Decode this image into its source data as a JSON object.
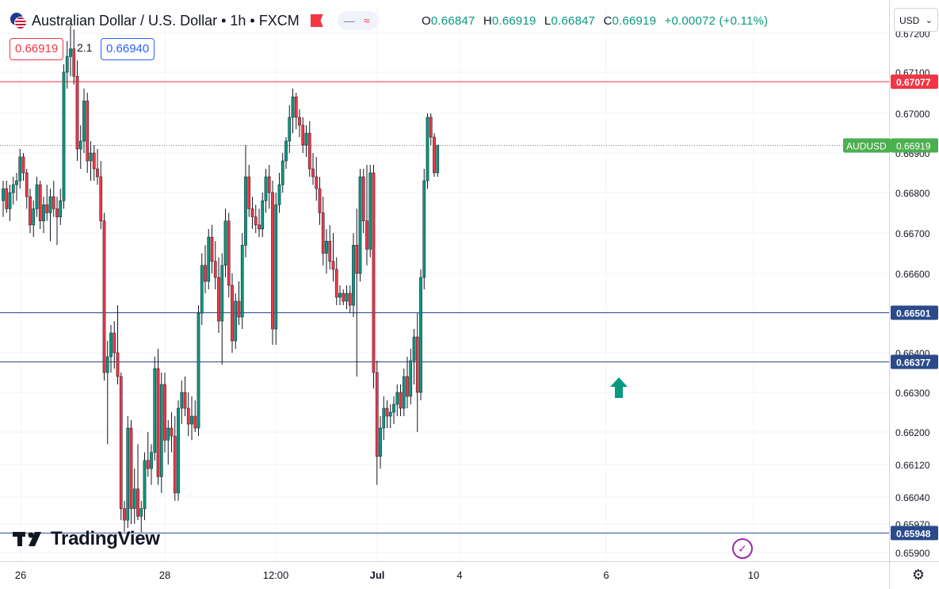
{
  "header": {
    "title": "Australian Dollar / U.S. Dollar • 1h • FXCM",
    "ohlc": {
      "o_label": "O",
      "o": "0.66847",
      "h_label": "H",
      "h": "0.66919",
      "l_label": "L",
      "l": "0.66847",
      "c_label": "C",
      "c": "0.66919",
      "change": "+0.00072 (+0.11%)"
    },
    "bid": "0.66919",
    "spread": "2.1",
    "ask": "0.66940",
    "currency": "USD",
    "icons": [
      "flag-icon",
      "minus-icon",
      "wave-icon"
    ]
  },
  "watermark": "TradingView",
  "colors": {
    "up": "#089981",
    "down": "#f23645",
    "resistance": "#f23645",
    "support": "#2a4a8a",
    "current": "#4caf50",
    "arrow": "#089981"
  },
  "chart_data": {
    "type": "candlestick",
    "symbol": "AUDUSD",
    "interval": "1h",
    "y_ticks": [
      "0.67200",
      "0.67100",
      "0.67000",
      "0.66900",
      "0.66800",
      "0.66700",
      "0.66600",
      "0.66500",
      "0.66400",
      "0.66300",
      "0.66200",
      "0.66120",
      "0.66040",
      "0.65970",
      "0.65900"
    ],
    "x_ticks": [
      "26",
      "28",
      "12:00",
      "Jul",
      "4",
      "6",
      "10"
    ],
    "levels": [
      {
        "value": 0.67077,
        "label": "0.67077",
        "kind": "resistance"
      },
      {
        "value": 0.66501,
        "label": "0.66501",
        "kind": "support"
      },
      {
        "value": 0.66377,
        "label": "0.66377",
        "kind": "support"
      },
      {
        "value": 0.65948,
        "label": "0.65948",
        "kind": "support"
      }
    ],
    "current": {
      "label": "AUDUSD",
      "value": 0.66919,
      "value_label": "0.66919"
    },
    "annotations": [
      {
        "type": "arrow-up",
        "near": "6",
        "price": 0.6631
      }
    ],
    "grid": true,
    "candles": [
      {
        "o": 0.6678,
        "h": 0.6683,
        "l": 0.6674,
        "c": 0.6681
      },
      {
        "o": 0.6681,
        "h": 0.6683,
        "l": 0.6675,
        "c": 0.6676
      },
      {
        "o": 0.6676,
        "h": 0.6682,
        "l": 0.6673,
        "c": 0.668
      },
      {
        "o": 0.668,
        "h": 0.6684,
        "l": 0.6677,
        "c": 0.6682
      },
      {
        "o": 0.6682,
        "h": 0.6685,
        "l": 0.6678,
        "c": 0.6683
      },
      {
        "o": 0.6683,
        "h": 0.6691,
        "l": 0.6681,
        "c": 0.6689
      },
      {
        "o": 0.6689,
        "h": 0.669,
        "l": 0.6683,
        "c": 0.6685
      },
      {
        "o": 0.6685,
        "h": 0.6686,
        "l": 0.6676,
        "c": 0.6679
      },
      {
        "o": 0.6679,
        "h": 0.6681,
        "l": 0.667,
        "c": 0.6672
      },
      {
        "o": 0.6672,
        "h": 0.6678,
        "l": 0.6669,
        "c": 0.6676
      },
      {
        "o": 0.6676,
        "h": 0.6684,
        "l": 0.6674,
        "c": 0.6682
      },
      {
        "o": 0.6682,
        "h": 0.6683,
        "l": 0.6671,
        "c": 0.6673
      },
      {
        "o": 0.6673,
        "h": 0.6679,
        "l": 0.667,
        "c": 0.6677
      },
      {
        "o": 0.6677,
        "h": 0.6682,
        "l": 0.6673,
        "c": 0.6675
      },
      {
        "o": 0.6675,
        "h": 0.6681,
        "l": 0.6668,
        "c": 0.6679
      },
      {
        "o": 0.6679,
        "h": 0.6683,
        "l": 0.6674,
        "c": 0.6676
      },
      {
        "o": 0.6676,
        "h": 0.6679,
        "l": 0.6667,
        "c": 0.6674
      },
      {
        "o": 0.6674,
        "h": 0.6681,
        "l": 0.6672,
        "c": 0.6678
      },
      {
        "o": 0.6678,
        "h": 0.6712,
        "l": 0.6676,
        "c": 0.671
      },
      {
        "o": 0.671,
        "h": 0.6718,
        "l": 0.6706,
        "c": 0.6714
      },
      {
        "o": 0.6714,
        "h": 0.6722,
        "l": 0.6709,
        "c": 0.6716
      },
      {
        "o": 0.6716,
        "h": 0.6721,
        "l": 0.6707,
        "c": 0.6709
      },
      {
        "o": 0.6709,
        "h": 0.6713,
        "l": 0.6688,
        "c": 0.6691
      },
      {
        "o": 0.6691,
        "h": 0.6697,
        "l": 0.6686,
        "c": 0.6693
      },
      {
        "o": 0.6693,
        "h": 0.6706,
        "l": 0.669,
        "c": 0.6703
      },
      {
        "o": 0.6703,
        "h": 0.6705,
        "l": 0.6685,
        "c": 0.6688
      },
      {
        "o": 0.6688,
        "h": 0.6693,
        "l": 0.6683,
        "c": 0.669
      },
      {
        "o": 0.669,
        "h": 0.6692,
        "l": 0.6683,
        "c": 0.6686
      },
      {
        "o": 0.6686,
        "h": 0.6691,
        "l": 0.6682,
        "c": 0.6684
      },
      {
        "o": 0.6684,
        "h": 0.6688,
        "l": 0.6671,
        "c": 0.6673
      },
      {
        "o": 0.6673,
        "h": 0.6675,
        "l": 0.6633,
        "c": 0.6635
      },
      {
        "o": 0.6635,
        "h": 0.6643,
        "l": 0.6617,
        "c": 0.6639
      },
      {
        "o": 0.6639,
        "h": 0.6647,
        "l": 0.6635,
        "c": 0.6645
      },
      {
        "o": 0.6645,
        "h": 0.6648,
        "l": 0.6636,
        "c": 0.664
      },
      {
        "o": 0.664,
        "h": 0.6652,
        "l": 0.6632,
        "c": 0.6634
      },
      {
        "o": 0.6634,
        "h": 0.6635,
        "l": 0.6598,
        "c": 0.6601
      },
      {
        "o": 0.6601,
        "h": 0.6603,
        "l": 0.6595,
        "c": 0.6598
      },
      {
        "o": 0.6598,
        "h": 0.6624,
        "l": 0.6596,
        "c": 0.6621
      },
      {
        "o": 0.6621,
        "h": 0.6623,
        "l": 0.6597,
        "c": 0.6601
      },
      {
        "o": 0.6601,
        "h": 0.6611,
        "l": 0.6597,
        "c": 0.6606
      },
      {
        "o": 0.6606,
        "h": 0.6617,
        "l": 0.6598,
        "c": 0.6599
      },
      {
        "o": 0.6599,
        "h": 0.6603,
        "l": 0.6595,
        "c": 0.6601
      },
      {
        "o": 0.6601,
        "h": 0.6615,
        "l": 0.6598,
        "c": 0.6613
      },
      {
        "o": 0.6613,
        "h": 0.662,
        "l": 0.6609,
        "c": 0.6611
      },
      {
        "o": 0.6611,
        "h": 0.6617,
        "l": 0.6607,
        "c": 0.6615
      },
      {
        "o": 0.6615,
        "h": 0.6639,
        "l": 0.6613,
        "c": 0.6636
      },
      {
        "o": 0.6636,
        "h": 0.6641,
        "l": 0.6607,
        "c": 0.6609
      },
      {
        "o": 0.6609,
        "h": 0.6635,
        "l": 0.6605,
        "c": 0.6632
      },
      {
        "o": 0.6632,
        "h": 0.6635,
        "l": 0.6615,
        "c": 0.6618
      },
      {
        "o": 0.6618,
        "h": 0.6623,
        "l": 0.6612,
        "c": 0.6621
      },
      {
        "o": 0.6621,
        "h": 0.6625,
        "l": 0.6615,
        "c": 0.6619
      },
      {
        "o": 0.6619,
        "h": 0.6624,
        "l": 0.6603,
        "c": 0.6605
      },
      {
        "o": 0.6605,
        "h": 0.6628,
        "l": 0.6603,
        "c": 0.6626
      },
      {
        "o": 0.6626,
        "h": 0.6633,
        "l": 0.6622,
        "c": 0.663
      },
      {
        "o": 0.663,
        "h": 0.6634,
        "l": 0.6624,
        "c": 0.6626
      },
      {
        "o": 0.6626,
        "h": 0.663,
        "l": 0.6619,
        "c": 0.6622
      },
      {
        "o": 0.6622,
        "h": 0.6629,
        "l": 0.6618,
        "c": 0.6624
      },
      {
        "o": 0.6624,
        "h": 0.6628,
        "l": 0.662,
        "c": 0.6621
      },
      {
        "o": 0.6621,
        "h": 0.6652,
        "l": 0.6619,
        "c": 0.665
      },
      {
        "o": 0.665,
        "h": 0.6665,
        "l": 0.6647,
        "c": 0.6662
      },
      {
        "o": 0.6662,
        "h": 0.6667,
        "l": 0.6655,
        "c": 0.6658
      },
      {
        "o": 0.6658,
        "h": 0.6671,
        "l": 0.6656,
        "c": 0.6669
      },
      {
        "o": 0.6669,
        "h": 0.6672,
        "l": 0.666,
        "c": 0.6663
      },
      {
        "o": 0.6663,
        "h": 0.6668,
        "l": 0.6656,
        "c": 0.6659
      },
      {
        "o": 0.6659,
        "h": 0.6664,
        "l": 0.6645,
        "c": 0.6648
      },
      {
        "o": 0.6648,
        "h": 0.6665,
        "l": 0.6637,
        "c": 0.6662
      },
      {
        "o": 0.6662,
        "h": 0.6676,
        "l": 0.6659,
        "c": 0.6673
      },
      {
        "o": 0.6673,
        "h": 0.6675,
        "l": 0.6654,
        "c": 0.6657
      },
      {
        "o": 0.6657,
        "h": 0.666,
        "l": 0.664,
        "c": 0.6643
      },
      {
        "o": 0.6643,
        "h": 0.6655,
        "l": 0.6641,
        "c": 0.6653
      },
      {
        "o": 0.6653,
        "h": 0.6658,
        "l": 0.6647,
        "c": 0.6649
      },
      {
        "o": 0.6649,
        "h": 0.667,
        "l": 0.6646,
        "c": 0.6667
      },
      {
        "o": 0.6667,
        "h": 0.6692,
        "l": 0.6664,
        "c": 0.6684
      },
      {
        "o": 0.6684,
        "h": 0.6687,
        "l": 0.6674,
        "c": 0.6676
      },
      {
        "o": 0.6676,
        "h": 0.6679,
        "l": 0.6671,
        "c": 0.6674
      },
      {
        "o": 0.6674,
        "h": 0.6677,
        "l": 0.667,
        "c": 0.6672
      },
      {
        "o": 0.6672,
        "h": 0.6676,
        "l": 0.6669,
        "c": 0.6671
      },
      {
        "o": 0.6671,
        "h": 0.668,
        "l": 0.6669,
        "c": 0.6678
      },
      {
        "o": 0.6678,
        "h": 0.6686,
        "l": 0.6675,
        "c": 0.6684
      },
      {
        "o": 0.6684,
        "h": 0.6687,
        "l": 0.6676,
        "c": 0.668
      },
      {
        "o": 0.668,
        "h": 0.6683,
        "l": 0.6642,
        "c": 0.6646
      },
      {
        "o": 0.6646,
        "h": 0.668,
        "l": 0.6642,
        "c": 0.6677
      },
      {
        "o": 0.6677,
        "h": 0.6685,
        "l": 0.6675,
        "c": 0.6682
      },
      {
        "o": 0.6682,
        "h": 0.669,
        "l": 0.668,
        "c": 0.6688
      },
      {
        "o": 0.6688,
        "h": 0.6694,
        "l": 0.6686,
        "c": 0.6693
      },
      {
        "o": 0.6693,
        "h": 0.6702,
        "l": 0.669,
        "c": 0.6699
      },
      {
        "o": 0.6699,
        "h": 0.6706,
        "l": 0.6695,
        "c": 0.6704
      },
      {
        "o": 0.6704,
        "h": 0.6705,
        "l": 0.6696,
        "c": 0.6699
      },
      {
        "o": 0.6699,
        "h": 0.6701,
        "l": 0.6694,
        "c": 0.6697
      },
      {
        "o": 0.6697,
        "h": 0.6699,
        "l": 0.669,
        "c": 0.6692
      },
      {
        "o": 0.6692,
        "h": 0.6697,
        "l": 0.6689,
        "c": 0.6695
      },
      {
        "o": 0.6695,
        "h": 0.6698,
        "l": 0.6684,
        "c": 0.6686
      },
      {
        "o": 0.6686,
        "h": 0.669,
        "l": 0.6682,
        "c": 0.6684
      },
      {
        "o": 0.6684,
        "h": 0.6689,
        "l": 0.6678,
        "c": 0.6681
      },
      {
        "o": 0.6681,
        "h": 0.6684,
        "l": 0.6672,
        "c": 0.6675
      },
      {
        "o": 0.6675,
        "h": 0.6679,
        "l": 0.6662,
        "c": 0.6665
      },
      {
        "o": 0.6665,
        "h": 0.6671,
        "l": 0.666,
        "c": 0.6668
      },
      {
        "o": 0.6668,
        "h": 0.6672,
        "l": 0.6661,
        "c": 0.6663
      },
      {
        "o": 0.6663,
        "h": 0.667,
        "l": 0.6658,
        "c": 0.6661
      },
      {
        "o": 0.6661,
        "h": 0.6664,
        "l": 0.6652,
        "c": 0.6654
      },
      {
        "o": 0.6654,
        "h": 0.6657,
        "l": 0.6652,
        "c": 0.6655
      },
      {
        "o": 0.6655,
        "h": 0.6656,
        "l": 0.6652,
        "c": 0.6653
      },
      {
        "o": 0.6653,
        "h": 0.6657,
        "l": 0.6651,
        "c": 0.6655
      },
      {
        "o": 0.6655,
        "h": 0.6657,
        "l": 0.665,
        "c": 0.6652
      },
      {
        "o": 0.6652,
        "h": 0.667,
        "l": 0.6649,
        "c": 0.6667
      },
      {
        "o": 0.6667,
        "h": 0.6676,
        "l": 0.6634,
        "c": 0.666
      },
      {
        "o": 0.666,
        "h": 0.6686,
        "l": 0.6658,
        "c": 0.6684
      },
      {
        "o": 0.6684,
        "h": 0.6686,
        "l": 0.667,
        "c": 0.6673
      },
      {
        "o": 0.6673,
        "h": 0.6687,
        "l": 0.6662,
        "c": 0.6666
      },
      {
        "o": 0.6666,
        "h": 0.6687,
        "l": 0.6664,
        "c": 0.6685
      },
      {
        "o": 0.6685,
        "h": 0.6687,
        "l": 0.6631,
        "c": 0.6635
      },
      {
        "o": 0.6635,
        "h": 0.6638,
        "l": 0.6607,
        "c": 0.6614
      },
      {
        "o": 0.6614,
        "h": 0.6624,
        "l": 0.6611,
        "c": 0.6621
      },
      {
        "o": 0.6621,
        "h": 0.6629,
        "l": 0.6618,
        "c": 0.6626
      },
      {
        "o": 0.6626,
        "h": 0.6628,
        "l": 0.6621,
        "c": 0.6624
      },
      {
        "o": 0.6624,
        "h": 0.6627,
        "l": 0.6621,
        "c": 0.6625
      },
      {
        "o": 0.6625,
        "h": 0.6629,
        "l": 0.6622,
        "c": 0.6627
      },
      {
        "o": 0.6627,
        "h": 0.6632,
        "l": 0.6624,
        "c": 0.663
      },
      {
        "o": 0.663,
        "h": 0.6632,
        "l": 0.6624,
        "c": 0.6626
      },
      {
        "o": 0.6626,
        "h": 0.6636,
        "l": 0.6624,
        "c": 0.6634
      },
      {
        "o": 0.6634,
        "h": 0.6639,
        "l": 0.6626,
        "c": 0.6629
      },
      {
        "o": 0.6629,
        "h": 0.6641,
        "l": 0.6627,
        "c": 0.6638
      },
      {
        "o": 0.6638,
        "h": 0.6646,
        "l": 0.6632,
        "c": 0.6644
      },
      {
        "o": 0.6644,
        "h": 0.665,
        "l": 0.662,
        "c": 0.663
      },
      {
        "o": 0.663,
        "h": 0.6661,
        "l": 0.6628,
        "c": 0.6659
      },
      {
        "o": 0.6659,
        "h": 0.6686,
        "l": 0.6656,
        "c": 0.6683
      },
      {
        "o": 0.6683,
        "h": 0.67,
        "l": 0.6681,
        "c": 0.6699
      },
      {
        "o": 0.6699,
        "h": 0.67,
        "l": 0.6692,
        "c": 0.6694
      },
      {
        "o": 0.6694,
        "h": 0.6695,
        "l": 0.6684,
        "c": 0.6685
      },
      {
        "o": 0.6685,
        "h": 0.6692,
        "l": 0.6684,
        "c": 0.6692
      }
    ]
  }
}
